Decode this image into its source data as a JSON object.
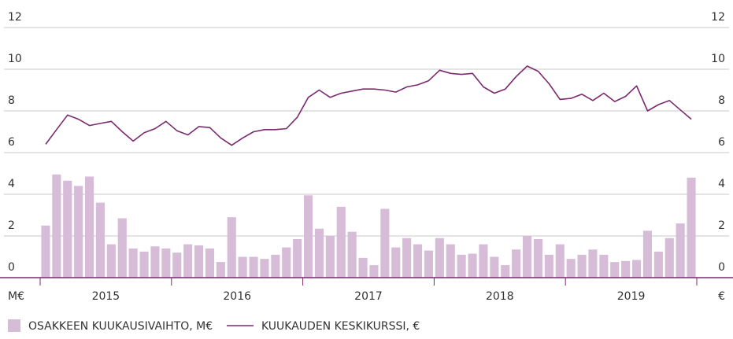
{
  "chart_data": {
    "type": "bar-line",
    "categories": [
      null,
      null,
      null,
      null,
      null,
      null,
      null,
      null,
      null,
      null,
      null,
      null,
      null,
      null,
      null,
      null,
      null,
      null,
      null,
      null,
      null,
      null,
      null,
      null,
      null,
      null,
      null,
      null,
      null,
      null,
      null,
      null,
      null,
      null,
      null,
      null,
      null,
      null,
      null,
      null,
      null,
      null,
      null,
      null,
      null,
      null,
      null,
      null,
      null,
      null,
      null,
      null,
      null,
      null,
      null,
      null,
      null,
      null,
      null,
      null
    ],
    "year_labels": [
      "2015",
      "2016",
      "2017",
      "2018",
      "2019"
    ],
    "y_unit_left": "M€",
    "y_unit_right": "€",
    "series": [
      {
        "name": "OSAKKEEN KUUKAUSIVAIHTO, M€",
        "type": "bar",
        "color": "#d7bcd8",
        "values": [
          2.5,
          4.95,
          4.65,
          4.4,
          4.85,
          3.6,
          1.6,
          2.85,
          1.4,
          1.25,
          1.5,
          1.4,
          1.2,
          1.6,
          1.55,
          1.4,
          0.75,
          2.9,
          1.0,
          1.0,
          0.9,
          1.1,
          1.45,
          1.85,
          3.95,
          2.35,
          2.0,
          3.4,
          2.2,
          0.95,
          0.6,
          3.3,
          1.45,
          1.9,
          1.6,
          1.3,
          1.9,
          1.6,
          1.1,
          1.15,
          1.6,
          1.0,
          0.6,
          1.35,
          2.0,
          1.85,
          1.1,
          1.6,
          0.9,
          1.1,
          1.35,
          1.1,
          0.75,
          0.8,
          0.85,
          2.25,
          1.25,
          1.9,
          2.6,
          4.8
        ]
      },
      {
        "name": "KUUKAUDEN KESKIKURSSI, €",
        "type": "line",
        "color": "#7a2a6e",
        "values": [
          6.4,
          7.1,
          7.8,
          7.6,
          7.3,
          7.4,
          7.5,
          7.0,
          6.55,
          6.95,
          7.15,
          7.5,
          7.05,
          6.85,
          7.25,
          7.2,
          6.7,
          6.35,
          6.7,
          7.0,
          7.1,
          7.1,
          7.15,
          7.7,
          8.65,
          9.0,
          8.65,
          8.85,
          8.95,
          9.05,
          9.05,
          9.0,
          8.9,
          9.15,
          9.25,
          9.45,
          9.95,
          9.8,
          9.75,
          9.8,
          9.15,
          8.85,
          9.05,
          9.65,
          10.15,
          9.9,
          9.3,
          8.55,
          8.6,
          8.8,
          8.5,
          8.85,
          8.45,
          8.7,
          9.2,
          8.0,
          8.3,
          8.5,
          8.05,
          7.6
        ]
      }
    ],
    "ylim": [
      0,
      12
    ],
    "yticks": [
      0,
      2,
      4,
      6,
      8,
      10,
      12
    ],
    "grid": true
  }
}
